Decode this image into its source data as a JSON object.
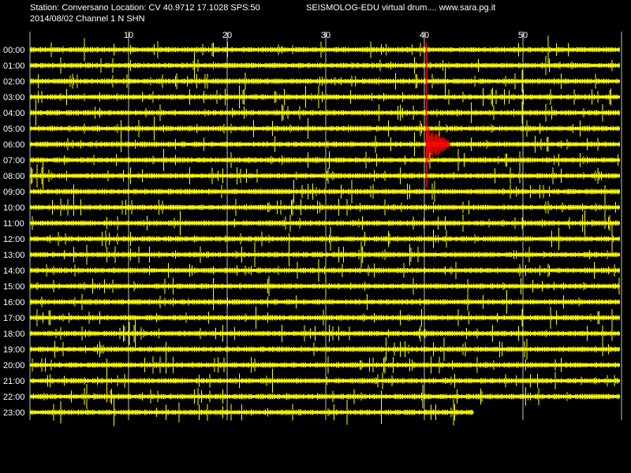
{
  "header": {
    "station_line": "Station: Conversano Location: CV 40.9712 17.1028 SPS:50",
    "date_line": "2014/08/02  Channel 1 N SHN",
    "app_title": "SEISMOLOG-EDU virtual drum.... www.sara.pg.it"
  },
  "drum": {
    "minute_ticks": [
      "10",
      "20",
      "30",
      "40",
      "50"
    ],
    "hour_labels": [
      "00:00",
      "01:00",
      "02:00",
      "03:00",
      "04:00",
      "05:00",
      "06:00",
      "07:00",
      "08:00",
      "09:00",
      "10:00",
      "11:00",
      "12:00",
      "13:00",
      "14:00",
      "15:00",
      "16:00",
      "17:00",
      "18:00",
      "19:00",
      "20:00",
      "21:00",
      "22:00",
      "23:00"
    ],
    "trace_color": "#ffff00",
    "event_color": "#ff0000",
    "grid_color": "#c0c0c0",
    "event_minute": 40.2,
    "event_hour_index": 6,
    "last_row_end_minute": 45
  }
}
